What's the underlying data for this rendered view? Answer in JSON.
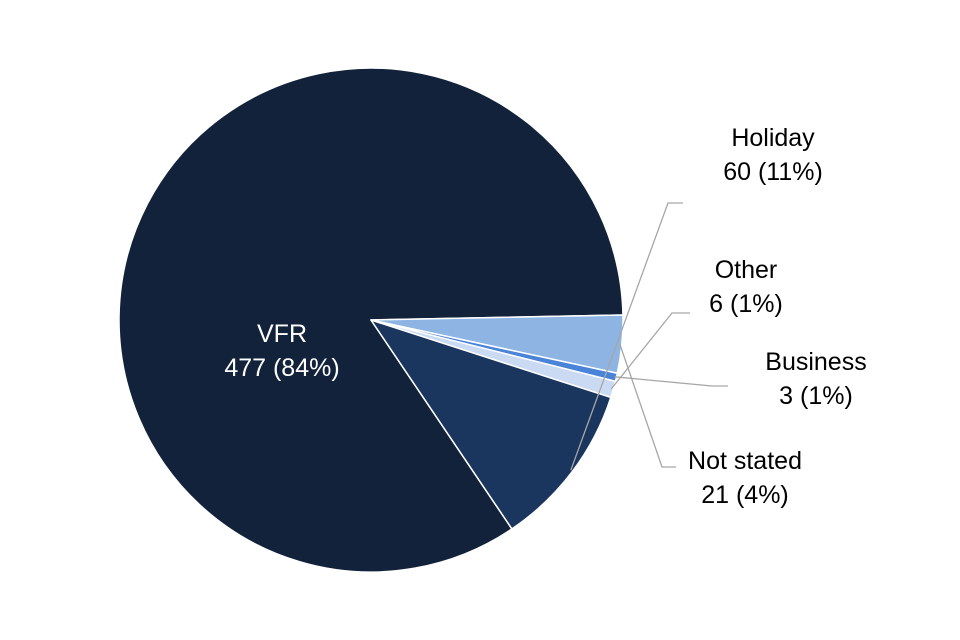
{
  "chart_data": {
    "type": "pie",
    "slices": [
      {
        "category": "VFR",
        "count": 477,
        "percent_label": "84%",
        "value_label": "477 (84%)",
        "color": "#13223b",
        "label_color": "#ffffff"
      },
      {
        "category": "Not stated",
        "count": 21,
        "percent_label": "4%",
        "value_label": "21 (4%)",
        "color": "#8eb4e3",
        "label_color": "#000000"
      },
      {
        "category": "Business",
        "count": 3,
        "percent_label": "1%",
        "value_label": "3 (1%)",
        "color": "#4a84d8",
        "label_color": "#000000"
      },
      {
        "category": "Other",
        "count": 6,
        "percent_label": "1%",
        "value_label": "6 (1%)",
        "color": "#c9daf2",
        "label_color": "#000000"
      },
      {
        "category": "Holiday",
        "count": 60,
        "percent_label": "11%",
        "value_label": "60 (11%)",
        "color": "#1a365f",
        "label_color": "#000000"
      }
    ],
    "leader_line_color": "#a6a6a6",
    "slice_border_color": "#ffffff"
  }
}
